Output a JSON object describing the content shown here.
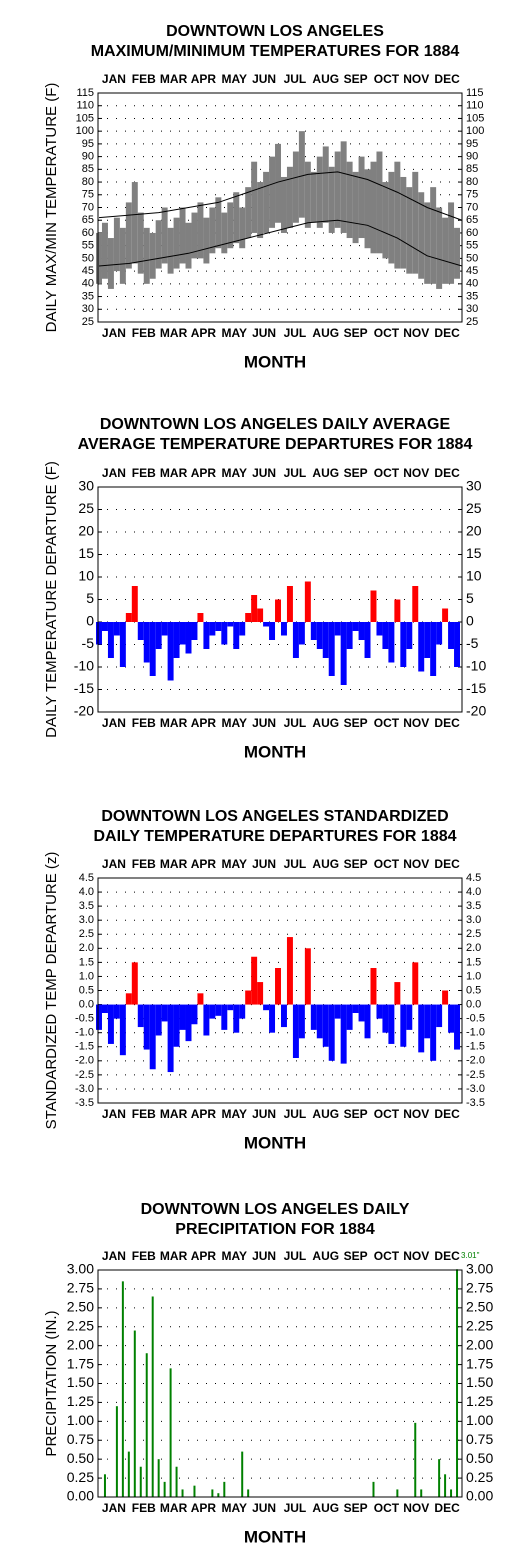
{
  "chart_data": [
    {
      "type": "range",
      "title": [
        "DOWNTOWN LOS ANGELES",
        "MAXIMUM/MINIMUM TEMPERATURES FOR 1884"
      ],
      "x_label": "MONTH",
      "y_label": "DAILY MAX/MIN TEMPERATURE (F)",
      "xlim": [
        0,
        366
      ],
      "xticks": [
        {
          "value": 16,
          "label": "JAN"
        },
        {
          "value": 46,
          "label": "FEB"
        },
        {
          "value": 76,
          "label": "MAR"
        },
        {
          "value": 106,
          "label": "APR"
        },
        {
          "value": 137,
          "label": "MAY"
        },
        {
          "value": 167,
          "label": "JUN"
        },
        {
          "value": 198,
          "label": "JUL"
        },
        {
          "value": 229,
          "label": "AUG"
        },
        {
          "value": 259,
          "label": "SEP"
        },
        {
          "value": 290,
          "label": "OCT"
        },
        {
          "value": 320,
          "label": "NOV"
        },
        {
          "value": 351,
          "label": "DEC"
        }
      ],
      "ylim": [
        25,
        115
      ],
      "yticks": [
        25,
        30,
        35,
        40,
        45,
        50,
        55,
        60,
        65,
        70,
        75,
        80,
        85,
        90,
        95,
        100,
        105,
        110,
        115
      ],
      "grid": true,
      "range_color": "#808080",
      "line_color": "#000000",
      "x": [
        1,
        7,
        13,
        19,
        25,
        31,
        37,
        43,
        49,
        55,
        61,
        67,
        73,
        79,
        85,
        91,
        97,
        103,
        109,
        115,
        121,
        127,
        133,
        139,
        145,
        151,
        157,
        163,
        169,
        175,
        181,
        187,
        193,
        199,
        205,
        211,
        217,
        223,
        229,
        235,
        241,
        247,
        253,
        259,
        265,
        271,
        277,
        283,
        289,
        295,
        301,
        307,
        313,
        319,
        325,
        331,
        337,
        343,
        349,
        355,
        361
      ],
      "max": [
        60,
        64,
        58,
        66,
        62,
        72,
        80,
        68,
        62,
        60,
        65,
        70,
        62,
        66,
        70,
        64,
        68,
        72,
        66,
        70,
        74,
        68,
        72,
        76,
        70,
        78,
        88,
        80,
        84,
        90,
        95,
        82,
        86,
        92,
        100,
        88,
        84,
        90,
        94,
        86,
        92,
        96,
        88,
        84,
        90,
        85,
        88,
        92,
        80,
        84,
        88,
        82,
        78,
        84,
        76,
        72,
        78,
        70,
        66,
        72,
        62
      ],
      "min": [
        40,
        42,
        38,
        45,
        40,
        46,
        48,
        44,
        40,
        42,
        46,
        48,
        44,
        46,
        48,
        46,
        50,
        50,
        48,
        52,
        54,
        52,
        54,
        56,
        54,
        58,
        60,
        58,
        60,
        62,
        64,
        60,
        62,
        64,
        66,
        62,
        64,
        62,
        64,
        60,
        62,
        60,
        58,
        56,
        58,
        54,
        52,
        52,
        50,
        48,
        46,
        46,
        44,
        44,
        42,
        40,
        40,
        38,
        40,
        40,
        42
      ],
      "normals": {
        "x": [
          1,
          31,
          61,
          91,
          121,
          151,
          181,
          211,
          241,
          271,
          301,
          331,
          366
        ],
        "max": [
          66,
          67,
          68,
          70,
          72,
          76,
          80,
          83,
          84,
          81,
          76,
          70,
          65
        ],
        "min": [
          47,
          48,
          50,
          52,
          55,
          58,
          61,
          64,
          65,
          63,
          58,
          51,
          47
        ]
      }
    },
    {
      "type": "bar",
      "title": [
        "DOWNTOWN LOS ANGELES DAILY AVERAGE",
        "AVERAGE TEMPERATURE DEPARTURES FOR 1884"
      ],
      "x_label": "MONTH",
      "y_label": "DAILY TEMPERATURE DEPARTURE (F)",
      "xlim": [
        0,
        366
      ],
      "xticks": [
        {
          "value": 16,
          "label": "JAN"
        },
        {
          "value": 46,
          "label": "FEB"
        },
        {
          "value": 76,
          "label": "MAR"
        },
        {
          "value": 106,
          "label": "APR"
        },
        {
          "value": 137,
          "label": "MAY"
        },
        {
          "value": 167,
          "label": "JUN"
        },
        {
          "value": 198,
          "label": "JUL"
        },
        {
          "value": 229,
          "label": "AUG"
        },
        {
          "value": 259,
          "label": "SEP"
        },
        {
          "value": 290,
          "label": "OCT"
        },
        {
          "value": 320,
          "label": "NOV"
        },
        {
          "value": 351,
          "label": "DEC"
        }
      ],
      "ylim": [
        -20,
        30
      ],
      "yticks": [
        -20,
        -15,
        -10,
        -5,
        0,
        5,
        10,
        15,
        20,
        25,
        30
      ],
      "grid": true,
      "color_positive": "#ff0000",
      "color_negative": "#0000ff",
      "bar_days": 6,
      "x": [
        1,
        7,
        13,
        19,
        25,
        31,
        37,
        43,
        49,
        55,
        61,
        67,
        73,
        79,
        85,
        91,
        97,
        103,
        109,
        115,
        121,
        127,
        133,
        139,
        145,
        151,
        157,
        163,
        169,
        175,
        181,
        187,
        193,
        199,
        205,
        211,
        217,
        223,
        229,
        235,
        241,
        247,
        253,
        259,
        265,
        271,
        277,
        283,
        289,
        295,
        301,
        307,
        313,
        319,
        325,
        331,
        337,
        343,
        349,
        355,
        361
      ],
      "values": [
        -5,
        -2,
        -8,
        -3,
        -10,
        2,
        8,
        -4,
        -9,
        -12,
        -6,
        -3,
        -13,
        -8,
        -5,
        -7,
        -4,
        2,
        -6,
        -3,
        -2,
        -5,
        -1,
        -6,
        -3,
        2,
        6,
        3,
        -1,
        -4,
        5,
        -3,
        8,
        -8,
        -5,
        9,
        -4,
        -6,
        -8,
        -12,
        -3,
        -14,
        -6,
        -2,
        -4,
        -8,
        7,
        -3,
        -6,
        -9,
        5,
        -10,
        -6,
        8,
        -11,
        -8,
        -12,
        -5,
        3,
        -6,
        -10
      ]
    },
    {
      "type": "bar",
      "title": [
        "DOWNTOWN LOS ANGELES STANDARDIZED",
        "DAILY TEMPERATURE DEPARTURES FOR 1884"
      ],
      "x_label": "MONTH",
      "y_label": "STANDARDIZED TEMP DEPARTURE (z)",
      "xlim": [
        0,
        366
      ],
      "xticks": [
        {
          "value": 16,
          "label": "JAN"
        },
        {
          "value": 46,
          "label": "FEB"
        },
        {
          "value": 76,
          "label": "MAR"
        },
        {
          "value": 106,
          "label": "APR"
        },
        {
          "value": 137,
          "label": "MAY"
        },
        {
          "value": 167,
          "label": "JUN"
        },
        {
          "value": 198,
          "label": "JUL"
        },
        {
          "value": 229,
          "label": "AUG"
        },
        {
          "value": 259,
          "label": "SEP"
        },
        {
          "value": 290,
          "label": "OCT"
        },
        {
          "value": 320,
          "label": "NOV"
        },
        {
          "value": 351,
          "label": "DEC"
        }
      ],
      "ylim": [
        -3.5,
        4.5
      ],
      "yticks": [
        -3.5,
        {
          "value": -3,
          "label": "-3.0"
        },
        -2.5,
        {
          "value": -2,
          "label": "-2.0"
        },
        -1.5,
        {
          "value": -1,
          "label": "-1.0"
        },
        -0.5,
        {
          "value": 0,
          "label": "0.0"
        },
        0.5,
        {
          "value": 1,
          "label": "1.0"
        },
        1.5,
        {
          "value": 2,
          "label": "2.0"
        },
        2.5,
        {
          "value": 3,
          "label": "3.0"
        },
        3.5,
        {
          "value": 4,
          "label": "4.0"
        },
        4.5
      ],
      "grid": true,
      "color_positive": "#ff0000",
      "color_negative": "#0000ff",
      "bar_days": 6,
      "x": [
        1,
        7,
        13,
        19,
        25,
        31,
        37,
        43,
        49,
        55,
        61,
        67,
        73,
        79,
        85,
        91,
        97,
        103,
        109,
        115,
        121,
        127,
        133,
        139,
        145,
        151,
        157,
        163,
        169,
        175,
        181,
        187,
        193,
        199,
        205,
        211,
        217,
        223,
        229,
        235,
        241,
        247,
        253,
        259,
        265,
        271,
        277,
        283,
        289,
        295,
        301,
        307,
        313,
        319,
        325,
        331,
        337,
        343,
        349,
        355,
        361
      ],
      "values": [
        -0.9,
        -0.3,
        -1.4,
        -0.5,
        -1.8,
        0.4,
        1.5,
        -0.8,
        -1.6,
        -2.3,
        -1.1,
        -0.6,
        -2.4,
        -1.5,
        -0.9,
        -1.3,
        -0.7,
        0.4,
        -1.1,
        -0.5,
        -0.4,
        -0.9,
        -0.2,
        -1.0,
        -0.5,
        0.5,
        1.7,
        0.8,
        -0.2,
        -1.0,
        1.3,
        -0.8,
        2.4,
        -1.9,
        -1.2,
        2.0,
        -0.9,
        -1.2,
        -1.5,
        -2.0,
        -0.5,
        -2.1,
        -0.9,
        -0.3,
        -0.6,
        -1.2,
        1.3,
        -0.5,
        -1.0,
        -1.4,
        0.8,
        -1.5,
        -0.9,
        1.5,
        -1.7,
        -1.2,
        -2.0,
        -0.8,
        0.5,
        -1.0,
        -1.6
      ]
    },
    {
      "type": "bar",
      "title": [
        "DOWNTOWN LOS ANGELES DAILY",
        "PRECIPITATION FOR 1884"
      ],
      "x_label": "MONTH",
      "y_label": "PRECIPITATION (IN.)",
      "xlim": [
        0,
        366
      ],
      "xticks": [
        {
          "value": 16,
          "label": "JAN"
        },
        {
          "value": 46,
          "label": "FEB"
        },
        {
          "value": 76,
          "label": "MAR"
        },
        {
          "value": 106,
          "label": "APR"
        },
        {
          "value": 137,
          "label": "MAY"
        },
        {
          "value": 167,
          "label": "JUN"
        },
        {
          "value": 198,
          "label": "JUL"
        },
        {
          "value": 229,
          "label": "AUG"
        },
        {
          "value": 259,
          "label": "SEP"
        },
        {
          "value": 290,
          "label": "OCT"
        },
        {
          "value": 320,
          "label": "NOV"
        },
        {
          "value": 351,
          "label": "DEC"
        }
      ],
      "ylim": [
        0,
        3
      ],
      "yticks": [
        {
          "value": 0,
          "label": "0.00"
        },
        0.25,
        {
          "value": 0.5,
          "label": "0.50"
        },
        0.75,
        {
          "value": 1,
          "label": "1.00"
        },
        1.25,
        {
          "value": 1.5,
          "label": "1.50"
        },
        1.75,
        {
          "value": 2,
          "label": "2.00"
        },
        2.25,
        {
          "value": 2.5,
          "label": "2.50"
        },
        2.75,
        {
          "value": 3,
          "label": "3.00"
        }
      ],
      "grid": true,
      "color_positive": "#008000",
      "color_negative": "#008000",
      "bar_days": 2,
      "annotation": "3.01\"",
      "x": [
        1,
        7,
        13,
        19,
        25,
        31,
        37,
        43,
        49,
        55,
        61,
        67,
        73,
        79,
        85,
        91,
        97,
        103,
        109,
        115,
        121,
        127,
        133,
        139,
        145,
        151,
        157,
        163,
        169,
        175,
        181,
        187,
        193,
        199,
        205,
        211,
        217,
        223,
        229,
        235,
        241,
        247,
        253,
        259,
        265,
        271,
        277,
        283,
        289,
        295,
        301,
        307,
        313,
        319,
        325,
        331,
        337,
        343,
        349,
        355,
        361
      ],
      "values": [
        0,
        0.3,
        0,
        1.2,
        2.85,
        0.6,
        2.2,
        0.4,
        1.9,
        2.65,
        0.5,
        0.2,
        1.7,
        0.4,
        0.1,
        0,
        0.15,
        0,
        0,
        0.1,
        0.05,
        0.2,
        0,
        0,
        0.6,
        0.1,
        0,
        0,
        0,
        0,
        0,
        0,
        0,
        0,
        0,
        0,
        0,
        0,
        0,
        0,
        0,
        0,
        0,
        0,
        0,
        0,
        0.2,
        0,
        0,
        0,
        0.1,
        0,
        0,
        0.98,
        0.1,
        0,
        0,
        0.5,
        0.3,
        0.1,
        3.01
      ]
    }
  ]
}
